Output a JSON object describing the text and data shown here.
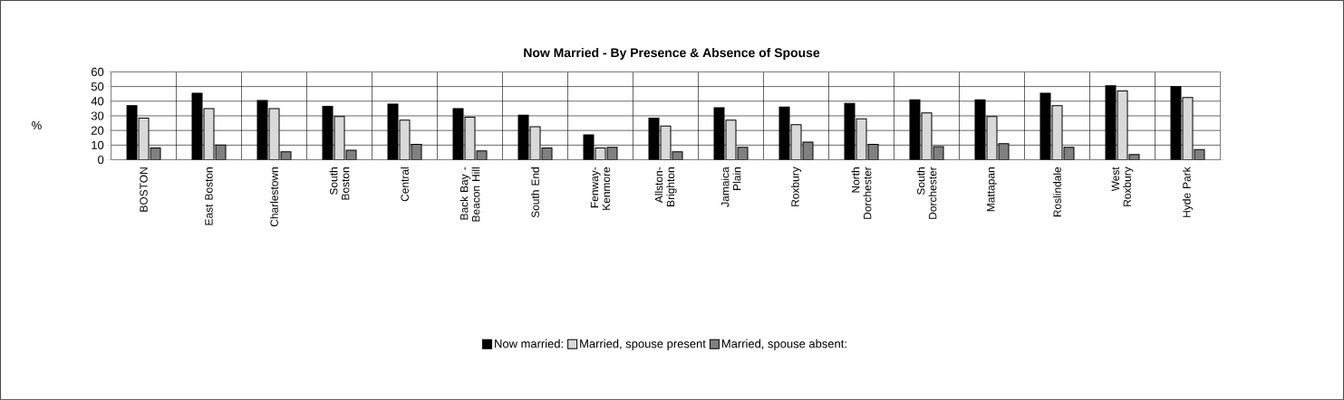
{
  "chart_data": {
    "type": "bar",
    "title": "Now Married - By Presence & Absence of Spouse",
    "ylabel": "%",
    "categories": [
      "BOSTON",
      "East Boston",
      "Charlestown",
      "South Boston",
      "Central",
      "Back Bay - Beacon Hill",
      "South End",
      "Fenway-Kenmore",
      "Allston-Brighton",
      "Jamaica Plain",
      "Roxbury",
      "North Dorchester",
      "South Dorchester",
      "Mattapan",
      "Roslindale",
      "West Roxbury",
      "Hyde Park"
    ],
    "series": [
      {
        "name": "Now married:",
        "color": "#000000",
        "values": [
          37,
          45.5,
          40.5,
          36.5,
          38,
          35,
          30.5,
          17,
          28.5,
          35.5,
          36,
          38.5,
          41,
          41,
          45.5,
          50.5,
          50
        ]
      },
      {
        "name": "Married, spouse present",
        "color": "#d9d9d9",
        "values": [
          28.5,
          35,
          35,
          29.5,
          27,
          29,
          22.5,
          8,
          23,
          27,
          24,
          28,
          32,
          29.5,
          37,
          47,
          42.5
        ]
      },
      {
        "name": "Married, spouse absent:",
        "color": "#808080",
        "values": [
          8,
          10,
          5.5,
          6.5,
          10.5,
          6,
          8,
          8.5,
          5.5,
          8.5,
          12,
          10.5,
          9,
          11,
          8.5,
          3.5,
          7
        ]
      }
    ],
    "ylim": [
      0,
      60
    ],
    "yticks": [
      0,
      10,
      20,
      30,
      40,
      50,
      60
    ],
    "grid": true,
    "legend": "bottom"
  }
}
